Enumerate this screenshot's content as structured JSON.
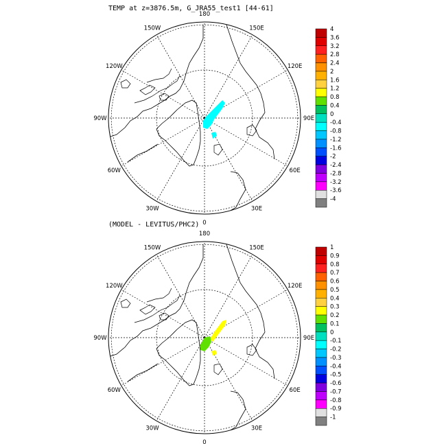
{
  "panels": [
    {
      "title": "TEMP at z=3876.5m, G_JRA55_test1 [44-61]",
      "meridian_labels": [
        "180",
        "150E",
        "120E",
        "90E",
        "60E",
        "30E",
        "0",
        "30W",
        "60W",
        "90W",
        "120W",
        "150W"
      ],
      "colorbar": {
        "labels": [
          "4",
          "3.6",
          "3.2",
          "2.8",
          "2.4",
          "2",
          "1.6",
          "1.2",
          "0.8",
          "0.4",
          "0",
          "-0.4",
          "-0.8",
          "-1.2",
          "-1.6",
          "-2",
          "-2.4",
          "-2.8",
          "-3.2",
          "-3.6",
          "-4"
        ],
        "colors": [
          "#c00000",
          "#e00000",
          "#ff2020",
          "#ff6000",
          "#ff9000",
          "#ffb000",
          "#ffd040",
          "#ffff00",
          "#60e000",
          "#00c060",
          "#00e0c0",
          "#00ffff",
          "#00c8ff",
          "#0090ff",
          "#0050ff",
          "#0000e0",
          "#8000e0",
          "#c000ff",
          "#ff00ff",
          "#e0e0e0",
          "#808080"
        ]
      },
      "field_color": "#00ffff"
    },
    {
      "title": "(MODEL - LEVITUS/PHC2)",
      "meridian_labels": [
        "180",
        "150E",
        "120E",
        "90E",
        "60E",
        "30E",
        "0",
        "30W",
        "60W",
        "90W",
        "120W",
        "150W"
      ],
      "colorbar": {
        "labels": [
          "1",
          "0.9",
          "0.8",
          "0.7",
          "0.6",
          "0.5",
          "0.4",
          "0.3",
          "0.2",
          "0.1",
          "0",
          "-0.1",
          "-0.2",
          "-0.3",
          "-0.4",
          "-0.5",
          "-0.6",
          "-0.7",
          "-0.8",
          "-0.9",
          "-1"
        ],
        "colors": [
          "#c00000",
          "#e00000",
          "#ff2020",
          "#ff6000",
          "#ff9000",
          "#ffb000",
          "#ffd040",
          "#ffff00",
          "#60e000",
          "#00c060",
          "#00e0c0",
          "#00ffff",
          "#00c8ff",
          "#0090ff",
          "#0050ff",
          "#0000e0",
          "#8000e0",
          "#c000ff",
          "#ff00ff",
          "#e0e0e0",
          "#808080"
        ]
      },
      "field_colors": [
        "#ffff00",
        "#60e000"
      ]
    }
  ]
}
